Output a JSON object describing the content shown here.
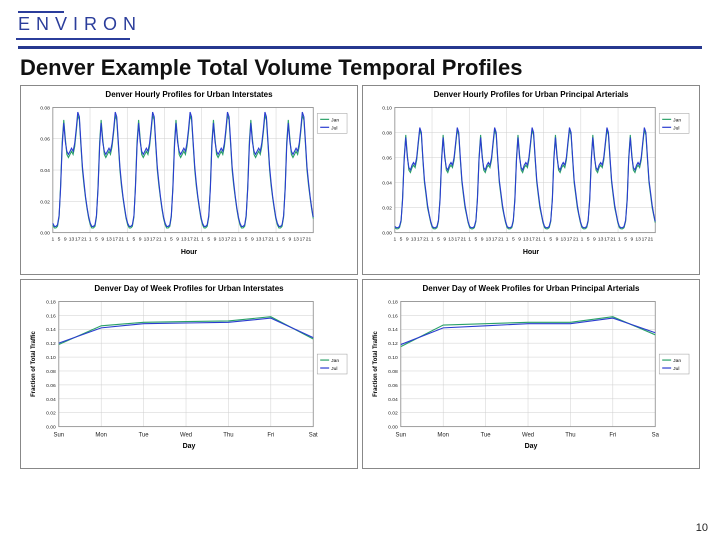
{
  "brand": {
    "logo_text": "ENVIRON"
  },
  "slide": {
    "title": "Denver Example Total Volume Temporal Profiles",
    "page_number": "10"
  },
  "colors": {
    "brand": "#2b3d9b",
    "hr": "#26388f",
    "grid": "#cfcfcf",
    "plot_border": "#888888",
    "series_a": "#2aa168",
    "series_b": "#2a3cd0",
    "background": "#ffffff"
  },
  "charts": {
    "tl": {
      "title": "Denver Hourly Profiles for Urban Interstates",
      "xlabel": "Hour",
      "ylabel": "",
      "legend": [
        "Jan",
        "Jul"
      ],
      "ymin": 0,
      "ymax": 0.08,
      "ystep": 0.02,
      "hours": 168,
      "hour_ticks": [
        1,
        5,
        9,
        13,
        17,
        21
      ],
      "days": 7,
      "hourly_pattern_a": [
        0.005,
        0.003,
        0.003,
        0.004,
        0.01,
        0.03,
        0.058,
        0.072,
        0.06,
        0.05,
        0.048,
        0.05,
        0.052,
        0.05,
        0.055,
        0.064,
        0.075,
        0.072,
        0.056,
        0.04,
        0.03,
        0.022,
        0.015,
        0.009
      ],
      "hourly_pattern_b": [
        0.006,
        0.004,
        0.004,
        0.005,
        0.011,
        0.028,
        0.055,
        0.07,
        0.058,
        0.052,
        0.05,
        0.052,
        0.054,
        0.052,
        0.057,
        0.066,
        0.077,
        0.074,
        0.058,
        0.042,
        0.032,
        0.023,
        0.016,
        0.01
      ],
      "grid_color": "#cfcfcf"
    },
    "tr": {
      "title": "Denver Hourly Profiles for Urban Principal Arterials",
      "xlabel": "Hour",
      "ylabel": "",
      "legend": [
        "Jan",
        "Jul"
      ],
      "ymin": 0,
      "ymax": 0.1,
      "ystep": 0.02,
      "hours": 168,
      "hour_ticks": [
        1,
        5,
        9,
        13,
        17,
        21
      ],
      "days": 7,
      "hourly_pattern_a": [
        0.004,
        0.003,
        0.003,
        0.004,
        0.009,
        0.028,
        0.06,
        0.078,
        0.062,
        0.05,
        0.048,
        0.052,
        0.054,
        0.052,
        0.058,
        0.07,
        0.082,
        0.078,
        0.058,
        0.04,
        0.03,
        0.02,
        0.014,
        0.008
      ],
      "hourly_pattern_b": [
        0.005,
        0.004,
        0.004,
        0.005,
        0.01,
        0.026,
        0.058,
        0.076,
        0.06,
        0.052,
        0.05,
        0.054,
        0.056,
        0.054,
        0.06,
        0.072,
        0.084,
        0.08,
        0.06,
        0.042,
        0.032,
        0.022,
        0.015,
        0.009
      ],
      "grid_color": "#cfcfcf"
    },
    "bl": {
      "title": "Denver Day of Week Profiles for Urban Interstates",
      "xlabel": "Day",
      "ylabel": "Fraction of Total Traffic",
      "legend": [
        "Jan",
        "Jul"
      ],
      "ymin": 0,
      "ymax": 0.18,
      "ystep": 0.02,
      "day_labels": [
        "Sun",
        "Mon",
        "Tue",
        "Wed",
        "Thu",
        "Fri",
        "Sat"
      ],
      "series_a": [
        0.118,
        0.145,
        0.15,
        0.151,
        0.152,
        0.158,
        0.126
      ],
      "series_b": [
        0.12,
        0.142,
        0.148,
        0.149,
        0.15,
        0.156,
        0.128
      ],
      "grid_color": "#cfcfcf"
    },
    "br": {
      "title": "Denver Day of Week Profiles for Urban Principal Arterials",
      "xlabel": "Day",
      "ylabel": "Fraction of Total Traffic",
      "legend": [
        "Jan",
        "Jul"
      ],
      "ymin": 0,
      "ymax": 0.18,
      "ystep": 0.02,
      "day_labels": [
        "Sun",
        "Mon",
        "Tue",
        "Wed",
        "Thu",
        "Fri",
        "Sa"
      ],
      "series_a": [
        0.115,
        0.146,
        0.148,
        0.15,
        0.15,
        0.158,
        0.132
      ],
      "series_b": [
        0.118,
        0.142,
        0.145,
        0.148,
        0.148,
        0.156,
        0.135
      ],
      "grid_color": "#cfcfcf"
    }
  },
  "style": {
    "title_fontsize": 22,
    "chart_title_fontsize": 8,
    "axis_tick_fontsize": 5,
    "legend_fontsize": 5,
    "line_width": 1.1
  }
}
